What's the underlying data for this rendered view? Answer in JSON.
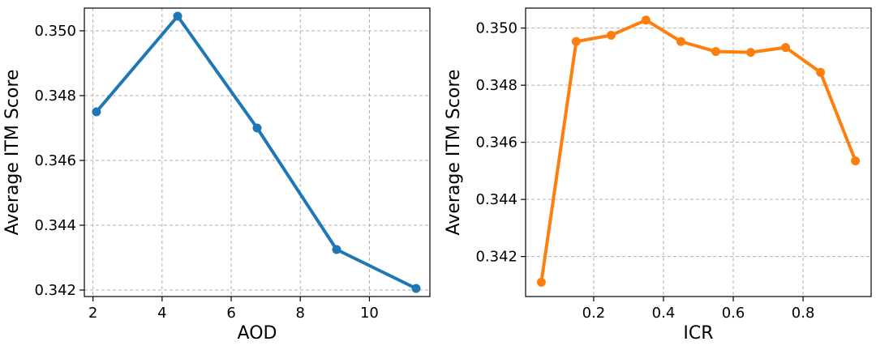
{
  "chart_data": [
    {
      "type": "line",
      "xlabel": "AOD",
      "ylabel": "Average ITM Score",
      "xlim": [
        1.75,
        11.75
      ],
      "ylim": [
        0.3418,
        0.3507
      ],
      "xticks": [
        "2",
        "4",
        "6",
        "8",
        "10"
      ],
      "yticks": [
        "0.342",
        "0.344",
        "0.346",
        "0.348",
        "0.350"
      ],
      "grid": true,
      "color": "#1f77b4",
      "series": [
        {
          "x": [
            2.1,
            4.45,
            6.75,
            9.05,
            11.35
          ],
          "values": [
            0.3475,
            0.35045,
            0.347,
            0.34325,
            0.34205
          ]
        }
      ]
    },
    {
      "type": "line",
      "xlabel": "ICR",
      "ylabel": "Average ITM Score",
      "xlim": [
        0.005,
        0.995
      ],
      "ylim": [
        0.3406,
        0.3507
      ],
      "xticks": [
        "0.2",
        "0.4",
        "0.6",
        "0.8"
      ],
      "yticks": [
        "0.342",
        "0.344",
        "0.346",
        "0.348",
        "0.350"
      ],
      "grid": true,
      "color": "#ff7f0e",
      "series": [
        {
          "x": [
            0.05,
            0.15,
            0.25,
            0.35,
            0.45,
            0.55,
            0.65,
            0.75,
            0.85,
            0.95
          ],
          "values": [
            0.3411,
            0.34953,
            0.34975,
            0.35028,
            0.34953,
            0.34918,
            0.34915,
            0.34932,
            0.34845,
            0.34535
          ]
        }
      ]
    }
  ]
}
